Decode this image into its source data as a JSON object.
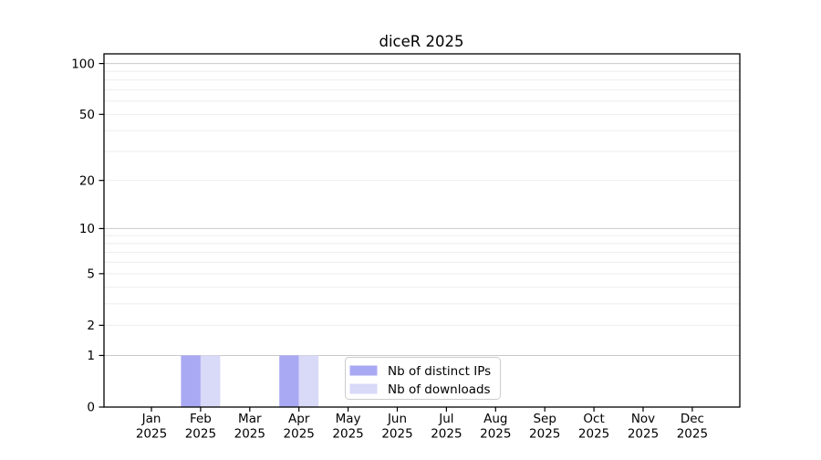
{
  "figure": {
    "background": "#ffffff"
  },
  "chart_data": {
    "type": "bar",
    "title": "diceR 2025",
    "categories": [
      "Jan",
      "Feb",
      "Mar",
      "Apr",
      "May",
      "Jun",
      "Jul",
      "Aug",
      "Sep",
      "Oct",
      "Nov",
      "Dec"
    ],
    "category_year": "2025",
    "series": [
      {
        "name": "Nb of distinct IPs",
        "color": "#a9a9f3",
        "values": [
          0,
          1,
          0,
          1,
          0,
          0,
          0,
          0,
          0,
          0,
          0,
          0
        ]
      },
      {
        "name": "Nb of downloads",
        "color": "#d9d9f8",
        "values": [
          0,
          1,
          0,
          1,
          0,
          0,
          0,
          0,
          0,
          0,
          0,
          0
        ]
      }
    ],
    "xlabel": "",
    "ylabel": "",
    "yscale": "log1p",
    "ylim": [
      0,
      114
    ],
    "yticks": [
      0,
      1,
      2,
      5,
      10,
      20,
      50,
      100
    ],
    "grid": true,
    "gridlines": {
      "major": [
        1,
        10,
        100
      ],
      "minor": [
        2,
        3,
        4,
        5,
        6,
        7,
        8,
        9,
        20,
        30,
        40,
        50,
        60,
        70,
        80,
        90
      ],
      "major_color": "#c9c9c9",
      "minor_color": "#ededed"
    },
    "axis_color": "#000000",
    "legend": {
      "position": "lower center",
      "border_color": "#cccccc",
      "background": "#ffffff",
      "items": [
        "Nb of distinct IPs",
        "Nb of downloads"
      ]
    }
  }
}
